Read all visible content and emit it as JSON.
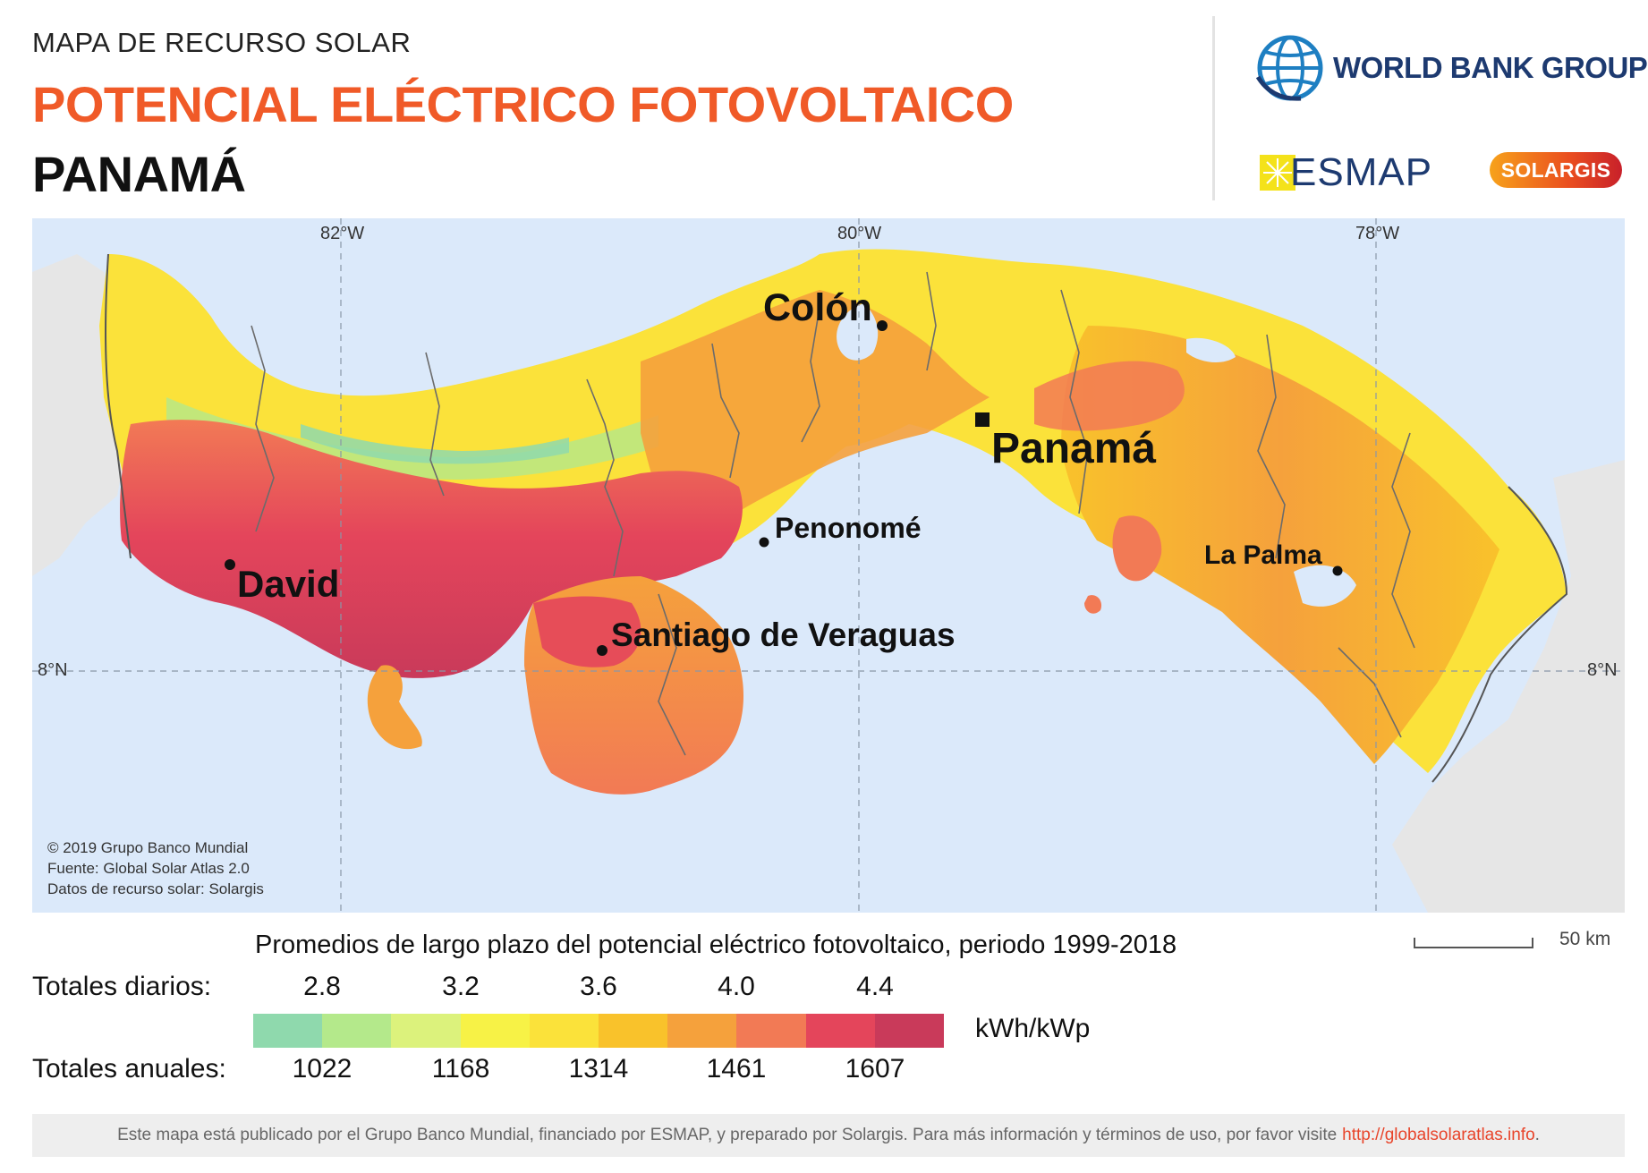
{
  "header": {
    "kicker": "MAPA DE RECURSO SOLAR",
    "title": "POTENCIAL ELÉCTRICO FOTOVOLTAICO",
    "country": "PANAMÁ"
  },
  "logos": {
    "world_bank": "WORLD BANK GROUP",
    "esmap": "ESMAP",
    "solargis": "SOLARGIS"
  },
  "map": {
    "graticule": {
      "lon_labels": [
        "82°W",
        "80°W",
        "78°W"
      ],
      "lat_label_left": "8°N",
      "lat_label_right": "8°N"
    },
    "cities": [
      {
        "name": "Colón",
        "marker": "dot"
      },
      {
        "name": "Panamá",
        "marker": "square",
        "capital": true
      },
      {
        "name": "Penonomé",
        "marker": "dot"
      },
      {
        "name": "David",
        "marker": "dot"
      },
      {
        "name": "Santiago de Veraguas",
        "marker": "dot"
      },
      {
        "name": "La Palma",
        "marker": "dot"
      }
    ],
    "credits": {
      "line1": "© 2019 Grupo Banco Mundial",
      "line2": "Fuente: Global Solar Atlas 2.0",
      "line3": "Datos de recurso solar: Solargis"
    },
    "colors": {
      "ocean": "#dbe9fa",
      "neighbor_land": "#e6e6e6",
      "border": "#6b6b6b"
    }
  },
  "legend": {
    "title": "Promedios de largo plazo del potencial eléctrico fotovoltaico, periodo 1999-2018",
    "daily_label": "Totales diarios:",
    "annual_label": "Totales anuales:",
    "daily_ticks": [
      "2.8",
      "3.2",
      "3.6",
      "4.0",
      "4.4"
    ],
    "annual_ticks": [
      "1022",
      "1168",
      "1314",
      "1461",
      "1607"
    ],
    "unit": "kWh/kWp",
    "colors": [
      "#8fd9ad",
      "#b4e98b",
      "#dcf27c",
      "#f7f246",
      "#fbe23a",
      "#f9c22b",
      "#f5a13c",
      "#f27a55",
      "#e4455b",
      "#c93a5a"
    ],
    "scale_label": "50 km"
  },
  "footer": {
    "text": "Este mapa está publicado por el Grupo Banco Mundial, financiado por ESMAP, y preparado por Solargis. Para más información y términos de uso, por favor visite",
    "link": "http://globalsolaratlas.info",
    "end": "."
  }
}
